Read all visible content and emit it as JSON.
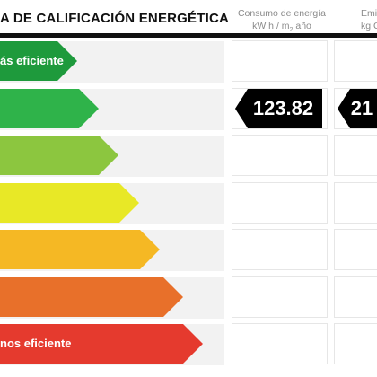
{
  "header": {
    "title": "A DE CALIFICACIÓN ENERGÉTICA",
    "col_consumo_line1": "Consumo de energía",
    "col_consumo_line2": "kW h / m",
    "col_consumo_unit_tail": "año",
    "col_emisiones_line1": "Emi",
    "col_emisiones_line2": "kg CO"
  },
  "scale": {
    "top_label": "ás eficiente",
    "bottom_label": "nos eficiente",
    "bars": [
      {
        "color": "#1e9a3c"
      },
      {
        "color": "#2fb34a"
      },
      {
        "color": "#8cc63f"
      },
      {
        "color": "#e8e826"
      },
      {
        "color": "#f5b824"
      },
      {
        "color": "#e8702a"
      },
      {
        "color": "#e53a2e"
      }
    ]
  },
  "rating": {
    "row_index": 1,
    "consumo_value": "123.82",
    "emisiones_value": "21"
  }
}
